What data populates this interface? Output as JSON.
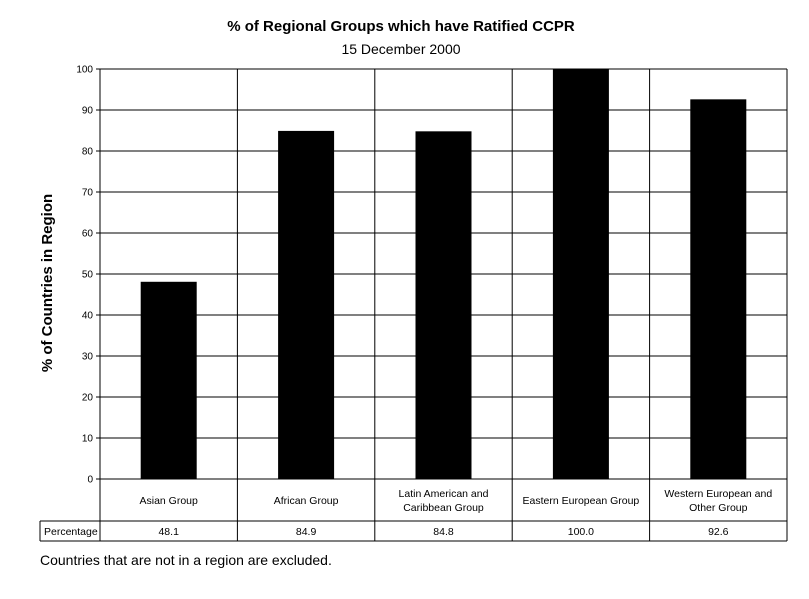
{
  "chart_data": {
    "type": "bar",
    "title": "% of Regional Groups which have Ratified CCPR",
    "subtitle": "15 December 2000",
    "ylabel": "% of Countries in Region",
    "xlabel": "",
    "ylim": [
      0,
      100
    ],
    "yticks": [
      "0",
      "10",
      "20",
      "30",
      "40",
      "50",
      "60",
      "70",
      "80",
      "90",
      "100"
    ],
    "grid": true,
    "categories": [
      [
        "Asian Group"
      ],
      [
        "African Group"
      ],
      [
        "Latin American and",
        "Caribbean Group"
      ],
      [
        "Eastern European Group"
      ],
      [
        "Western European and",
        "Other Group"
      ]
    ],
    "series": [
      {
        "name": "Percentage",
        "values": [
          48.1,
          84.9,
          84.8,
          100.0,
          92.6
        ],
        "color": "#000000"
      }
    ],
    "data_table": {
      "row_label": "Percentage",
      "values": [
        "48.1",
        "84.9",
        "84.8",
        "100.0",
        "92.6"
      ]
    },
    "footnote": "Countries that are not in a region are excluded."
  }
}
